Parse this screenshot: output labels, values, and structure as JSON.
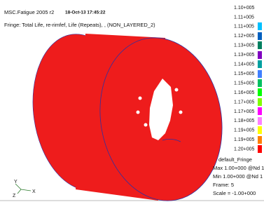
{
  "header": {
    "app": "MSC.Fatigue 2005 r2",
    "timestamp": "18-Oct-13 17:45:22",
    "fringe": "Fringe: Total Life, re-rimfef, Life (Repeats), , (NON_LAYERED_2)"
  },
  "legend": {
    "labels": [
      "1.10+005",
      "1.11+005",
      "1.11+005",
      "1.12+005",
      "1.13+005",
      "1.13+005",
      "1.14+005",
      "1.15+005",
      "1.15+005",
      "1.16+005",
      "1.17+005",
      "1.17+005",
      "1.18+005",
      "1.19+005",
      "1.19+005",
      "1.20+005"
    ]
  },
  "info": {
    "name": "default_Fringe",
    "max": "Max 1.00+000 @Nd 1",
    "min": "Min 1.00+000 @Nd 1",
    "frame": "Frame:  5",
    "scale": "Scale = -1.00+000"
  },
  "triad": {
    "y": "Y",
    "x": "X",
    "z": "Z"
  }
}
